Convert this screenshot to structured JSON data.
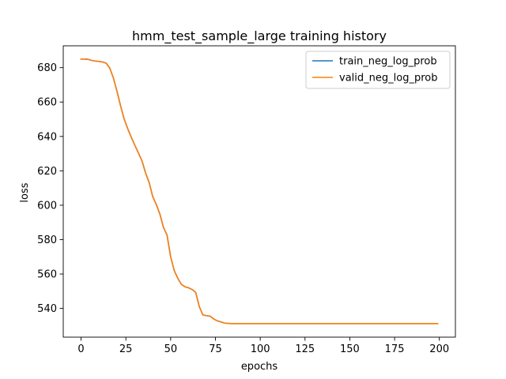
{
  "chart_data": {
    "type": "line",
    "title": "hmm_test_sample_large training history",
    "xlabel": "epochs",
    "ylabel": "loss",
    "xlim": [
      -9.95,
      208.95
    ],
    "ylim": [
      523.3,
      692.7
    ],
    "xticks": [
      0,
      25,
      50,
      75,
      100,
      125,
      150,
      175,
      200
    ],
    "yticks": [
      540,
      560,
      580,
      600,
      620,
      640,
      660,
      680
    ],
    "grid": false,
    "legend_position": "top-right",
    "x": [
      0,
      2,
      4,
      6,
      8,
      10,
      12,
      14,
      16,
      18,
      20,
      22,
      24,
      26,
      28,
      30,
      32,
      34,
      36,
      38,
      40,
      42,
      44,
      46,
      48,
      50,
      52,
      54,
      56,
      58,
      60,
      62,
      64,
      66,
      68,
      70,
      72,
      74,
      76,
      78,
      80,
      82,
      84,
      86,
      88,
      90,
      95,
      100,
      110,
      120,
      130,
      140,
      150,
      160,
      170,
      180,
      190,
      199
    ],
    "series": [
      {
        "name": "train_neg_log_prob",
        "color": "#1f77b4",
        "values": [
          685.0,
          685.0,
          684.8,
          684.2,
          683.8,
          683.6,
          683.3,
          682.6,
          679.8,
          674.1,
          666.5,
          658.0,
          650.3,
          644.6,
          639.6,
          634.9,
          630.4,
          625.8,
          618.8,
          613.2,
          605.0,
          600.4,
          594.8,
          587.1,
          582.6,
          570.0,
          562.0,
          557.5,
          554.0,
          552.6,
          552.0,
          551.0,
          549.3,
          541.0,
          536.2,
          535.8,
          535.5,
          533.9,
          532.8,
          532.2,
          531.5,
          531.3,
          531.2,
          531.2,
          531.2,
          531.2,
          531.2,
          531.2,
          531.2,
          531.2,
          531.2,
          531.2,
          531.2,
          531.2,
          531.2,
          531.2,
          531.2,
          531.2
        ]
      },
      {
        "name": "valid_neg_log_prob",
        "color": "#ff7f0e",
        "values": [
          685.0,
          685.0,
          684.8,
          684.2,
          683.8,
          683.6,
          683.3,
          682.6,
          679.8,
          674.1,
          666.5,
          658.0,
          650.3,
          644.6,
          639.6,
          634.9,
          630.4,
          625.8,
          618.8,
          613.2,
          605.0,
          600.4,
          594.8,
          587.1,
          582.6,
          570.0,
          562.0,
          557.5,
          554.0,
          552.6,
          552.0,
          551.0,
          549.3,
          541.0,
          536.2,
          535.8,
          535.5,
          533.9,
          532.8,
          532.2,
          531.5,
          531.3,
          531.2,
          531.2,
          531.2,
          531.2,
          531.2,
          531.2,
          531.2,
          531.2,
          531.2,
          531.2,
          531.2,
          531.2,
          531.2,
          531.2,
          531.2,
          531.2
        ]
      }
    ]
  }
}
